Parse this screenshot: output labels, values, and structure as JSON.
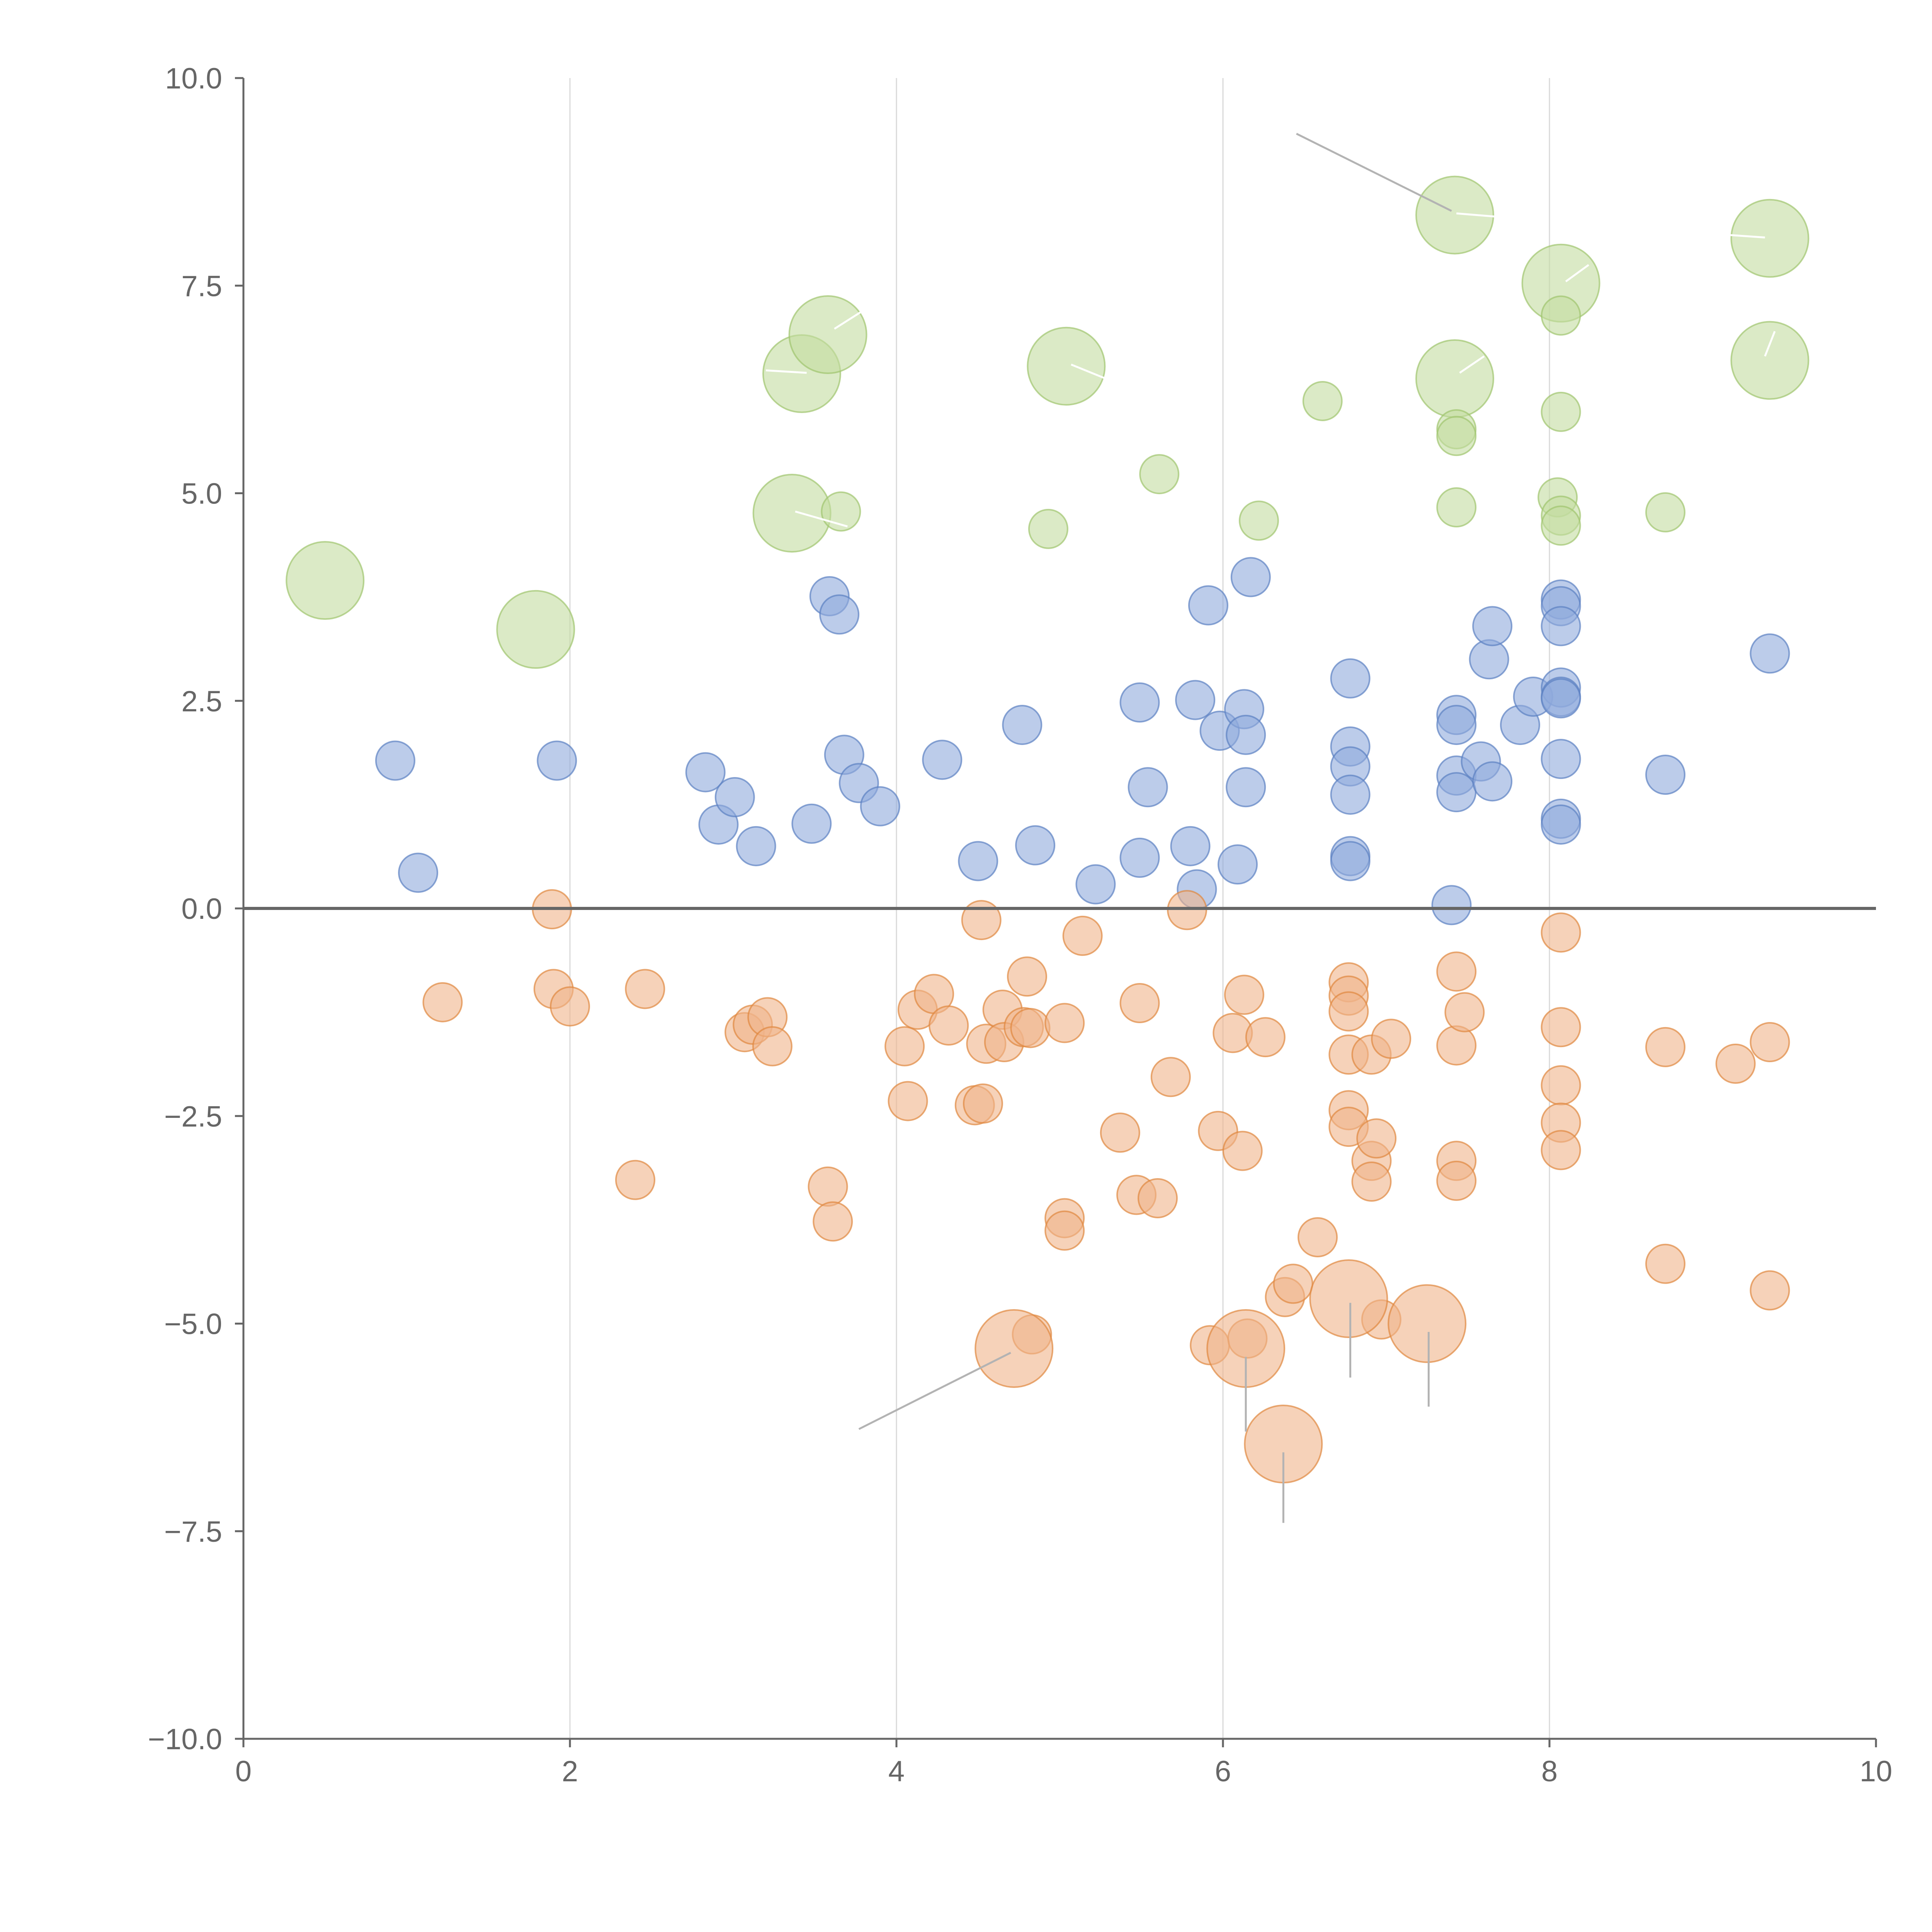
{
  "chart_data": {
    "type": "scatter",
    "subtype": "bubble",
    "title": "",
    "xlabel": "",
    "ylabel": "",
    "xlim": [
      0,
      10
    ],
    "ylim": [
      -10,
      10
    ],
    "x_ticks": [
      0,
      2,
      4,
      6,
      8,
      10
    ],
    "y_ticks": [
      -10,
      -7.5,
      -5,
      -2.5,
      0,
      2.5,
      5,
      7.5,
      10
    ],
    "x_tick_labels": [
      "0",
      "2",
      "4",
      "6",
      "8",
      "10"
    ],
    "y_tick_labels": [
      "−10.0",
      "−7.5",
      "−5.0",
      "−2.5",
      "0.0",
      "2.5",
      "5.0",
      "7.5",
      "10.0"
    ],
    "grid": "vertical",
    "reference_line_y": 0,
    "legend": "none",
    "colors": {
      "blue_fill": "#8faadc",
      "blue_stroke": "#5b80c2",
      "orange_fill": "#f0b48a",
      "orange_stroke": "#e0883f",
      "green_fill": "#c3dca0",
      "green_stroke": "#9fc46e",
      "annotation_gray": "#b3b3b3",
      "annotation_white": "#ffffff",
      "axis": "#666666",
      "grid": "#d9d9d9"
    },
    "series": [
      {
        "name": "blue",
        "color": "#8faadc",
        "points": [
          [
            0.93,
            1.78,
            1
          ],
          [
            1.07,
            0.43,
            1
          ],
          [
            1.92,
            1.78,
            1
          ],
          [
            2.83,
            1.64,
            1
          ],
          [
            2.91,
            1.01,
            1
          ],
          [
            3.01,
            1.34,
            1
          ],
          [
            3.14,
            0.75,
            1
          ],
          [
            3.48,
            1.02,
            1
          ],
          [
            3.59,
            3.76,
            1
          ],
          [
            3.65,
            3.54,
            1
          ],
          [
            3.68,
            1.85,
            1
          ],
          [
            3.77,
            1.51,
            1
          ],
          [
            3.9,
            1.23,
            1
          ],
          [
            4.28,
            1.79,
            1
          ],
          [
            4.5,
            0.57,
            1
          ],
          [
            4.77,
            2.21,
            1
          ],
          [
            4.85,
            0.76,
            1
          ],
          [
            5.22,
            0.29,
            1
          ],
          [
            5.49,
            2.48,
            1
          ],
          [
            5.49,
            0.61,
            1
          ],
          [
            5.54,
            1.46,
            1
          ],
          [
            5.8,
            0.75,
            1
          ],
          [
            5.83,
            2.51,
            1
          ],
          [
            5.84,
            0.23,
            1
          ],
          [
            5.91,
            3.65,
            1
          ],
          [
            5.98,
            2.14,
            1
          ],
          [
            6.09,
            0.53,
            1
          ],
          [
            6.13,
            2.4,
            1
          ],
          [
            6.14,
            2.09,
            1
          ],
          [
            6.14,
            1.46,
            1
          ],
          [
            6.17,
            3.99,
            1
          ],
          [
            6.78,
            2.77,
            1
          ],
          [
            6.78,
            1.95,
            1
          ],
          [
            6.78,
            1.71,
            1
          ],
          [
            6.78,
            1.37,
            1
          ],
          [
            6.78,
            0.63,
            1
          ],
          [
            6.78,
            0.57,
            1
          ],
          [
            7.4,
            0.04,
            1
          ],
          [
            7.43,
            2.33,
            1
          ],
          [
            7.43,
            2.21,
            1
          ],
          [
            7.43,
            1.6,
            1
          ],
          [
            7.43,
            1.4,
            1
          ],
          [
            7.58,
            1.77,
            1
          ],
          [
            7.63,
            3.0,
            1
          ],
          [
            7.65,
            3.4,
            1
          ],
          [
            7.65,
            1.53,
            1
          ],
          [
            7.82,
            2.21,
            1
          ],
          [
            7.9,
            2.55,
            1
          ],
          [
            8.07,
            3.72,
            1
          ],
          [
            8.07,
            3.64,
            1
          ],
          [
            8.07,
            3.4,
            1
          ],
          [
            8.07,
            2.66,
            1
          ],
          [
            8.07,
            2.55,
            1
          ],
          [
            8.07,
            2.53,
            1
          ],
          [
            8.07,
            1.8,
            1
          ],
          [
            8.07,
            1.08,
            1
          ],
          [
            8.07,
            1.01,
            1
          ],
          [
            8.71,
            1.61,
            1
          ],
          [
            9.35,
            3.07,
            1
          ]
        ]
      },
      {
        "name": "orange",
        "color": "#f0b48a",
        "points": [
          [
            1.22,
            -1.13,
            1
          ],
          [
            1.89,
            -0.01,
            1
          ],
          [
            1.9,
            -0.97,
            1
          ],
          [
            2.0,
            -1.18,
            1
          ],
          [
            2.4,
            -3.27,
            1
          ],
          [
            2.46,
            -0.97,
            1
          ],
          [
            3.07,
            -1.49,
            1
          ],
          [
            3.12,
            -1.4,
            1
          ],
          [
            3.21,
            -1.31,
            1
          ],
          [
            3.24,
            -1.66,
            1
          ],
          [
            3.58,
            -3.35,
            1
          ],
          [
            3.61,
            -3.77,
            1
          ],
          [
            4.05,
            -1.66,
            1
          ],
          [
            4.07,
            -2.32,
            1
          ],
          [
            4.13,
            -1.22,
            1
          ],
          [
            4.23,
            -1.03,
            1
          ],
          [
            4.32,
            -1.41,
            1
          ],
          [
            4.48,
            -2.37,
            1
          ],
          [
            4.53,
            -2.35,
            1
          ],
          [
            4.52,
            -0.14,
            1
          ],
          [
            4.55,
            -1.63,
            1
          ],
          [
            4.65,
            -1.22,
            1
          ],
          [
            4.66,
            -1.61,
            1
          ],
          [
            4.78,
            -1.43,
            1
          ],
          [
            4.8,
            -0.82,
            1
          ],
          [
            4.82,
            -1.44,
            1
          ],
          [
            4.83,
            -5.13,
            1
          ],
          [
            5.03,
            -1.38,
            1
          ],
          [
            5.03,
            -3.73,
            1
          ],
          [
            5.03,
            -3.88,
            1
          ],
          [
            5.14,
            -0.33,
            1
          ],
          [
            5.37,
            -2.7,
            1
          ],
          [
            5.47,
            -3.45,
            1
          ],
          [
            5.49,
            -1.14,
            1
          ],
          [
            5.6,
            -3.49,
            1
          ],
          [
            5.68,
            -2.03,
            1
          ],
          [
            5.78,
            -0.02,
            1
          ],
          [
            5.92,
            -5.26,
            1
          ],
          [
            5.97,
            -2.68,
            1
          ],
          [
            6.06,
            -1.5,
            1
          ],
          [
            6.12,
            -2.92,
            1
          ],
          [
            6.13,
            -1.04,
            1
          ],
          [
            6.15,
            -5.18,
            1
          ],
          [
            6.26,
            -1.55,
            1
          ],
          [
            6.38,
            -4.68,
            1
          ],
          [
            6.43,
            -4.52,
            1
          ],
          [
            6.58,
            -3.96,
            1
          ],
          [
            6.77,
            -0.89,
            1
          ],
          [
            6.77,
            -1.05,
            1
          ],
          [
            6.77,
            -1.24,
            1
          ],
          [
            6.77,
            -1.76,
            1
          ],
          [
            6.77,
            -2.43,
            1
          ],
          [
            6.77,
            -2.63,
            1
          ],
          [
            6.91,
            -1.76,
            1
          ],
          [
            6.91,
            -3.04,
            1
          ],
          [
            6.91,
            -3.29,
            1
          ],
          [
            6.94,
            -2.77,
            1
          ],
          [
            6.97,
            -4.95,
            1
          ],
          [
            7.03,
            -1.57,
            1
          ],
          [
            7.43,
            -0.76,
            1
          ],
          [
            7.43,
            -1.65,
            1
          ],
          [
            7.43,
            -3.04,
            1
          ],
          [
            7.43,
            -3.28,
            1
          ],
          [
            7.48,
            -1.25,
            1
          ],
          [
            8.07,
            -0.29,
            1
          ],
          [
            8.07,
            -1.43,
            1
          ],
          [
            8.07,
            -2.13,
            1
          ],
          [
            8.07,
            -2.58,
            1
          ],
          [
            8.07,
            -2.91,
            1
          ],
          [
            8.71,
            -1.67,
            1
          ],
          [
            8.71,
            -4.28,
            1
          ],
          [
            9.14,
            -1.87,
            1
          ],
          [
            9.35,
            -1.61,
            1
          ],
          [
            9.35,
            -4.6,
            1
          ],
          [
            4.72,
            -5.3,
            2
          ],
          [
            6.14,
            -5.3,
            2
          ],
          [
            6.77,
            -4.7,
            2
          ],
          [
            7.25,
            -5.0,
            2
          ],
          [
            6.37,
            -6.45,
            2
          ]
        ]
      },
      {
        "name": "green",
        "color": "#c3dca0",
        "points": [
          [
            0.5,
            3.95,
            2
          ],
          [
            1.79,
            3.36,
            2
          ],
          [
            3.36,
            4.76,
            2
          ],
          [
            3.42,
            6.44,
            2
          ],
          [
            3.58,
            6.91,
            2
          ],
          [
            3.66,
            4.78,
            1
          ],
          [
            4.93,
            4.57,
            1
          ],
          [
            5.04,
            6.53,
            2
          ],
          [
            5.61,
            5.23,
            1
          ],
          [
            6.22,
            4.67,
            1
          ],
          [
            6.61,
            6.11,
            1
          ],
          [
            7.42,
            8.35,
            2
          ],
          [
            7.42,
            6.38,
            2
          ],
          [
            7.43,
            5.77,
            1
          ],
          [
            7.43,
            5.69,
            1
          ],
          [
            7.43,
            4.83,
            1
          ],
          [
            8.05,
            4.95,
            1
          ],
          [
            8.07,
            7.53,
            2
          ],
          [
            8.07,
            7.14,
            1
          ],
          [
            8.07,
            5.98,
            1
          ],
          [
            8.07,
            4.73,
            1
          ],
          [
            8.07,
            4.61,
            1
          ],
          [
            8.71,
            4.77,
            1
          ],
          [
            9.35,
            8.07,
            2
          ],
          [
            9.35,
            6.6,
            2
          ]
        ]
      }
    ],
    "annotation_leaders": [
      {
        "color": "gray",
        "from": [
          6.45,
          9.33
        ],
        "to": [
          7.4,
          8.4
        ]
      },
      {
        "color": "gray",
        "from": [
          3.77,
          -6.27
        ],
        "to": [
          4.7,
          -5.35
        ]
      },
      {
        "color": "gray",
        "from": [
          6.14,
          -5.4
        ],
        "to": [
          6.14,
          -6.3
        ]
      },
      {
        "color": "gray",
        "from": [
          6.78,
          -4.75
        ],
        "to": [
          6.78,
          -5.65
        ]
      },
      {
        "color": "gray",
        "from": [
          7.26,
          -5.1
        ],
        "to": [
          7.26,
          -6.0
        ]
      },
      {
        "color": "gray",
        "from": [
          6.37,
          -6.55
        ],
        "to": [
          6.37,
          -7.4
        ]
      },
      {
        "color": "white",
        "from": [
          7.43,
          8.37
        ],
        "to": [
          7.68,
          8.33
        ]
      },
      {
        "color": "white",
        "from": [
          8.1,
          7.55
        ],
        "to": [
          8.24,
          7.75
        ]
      },
      {
        "color": "white",
        "from": [
          9.1,
          8.11
        ],
        "to": [
          9.32,
          8.08
        ]
      },
      {
        "color": "white",
        "from": [
          7.45,
          6.45
        ],
        "to": [
          7.6,
          6.65
        ]
      },
      {
        "color": "white",
        "from": [
          9.32,
          6.65
        ],
        "to": [
          9.38,
          6.95
        ]
      },
      {
        "color": "white",
        "from": [
          3.62,
          6.98
        ],
        "to": [
          3.78,
          7.18
        ]
      },
      {
        "color": "white",
        "from": [
          3.45,
          6.45
        ],
        "to": [
          3.2,
          6.48
        ]
      },
      {
        "color": "white",
        "from": [
          5.07,
          6.55
        ],
        "to": [
          5.32,
          6.35
        ]
      },
      {
        "color": "white",
        "from": [
          3.38,
          4.78
        ],
        "to": [
          3.7,
          4.6
        ]
      }
    ]
  }
}
